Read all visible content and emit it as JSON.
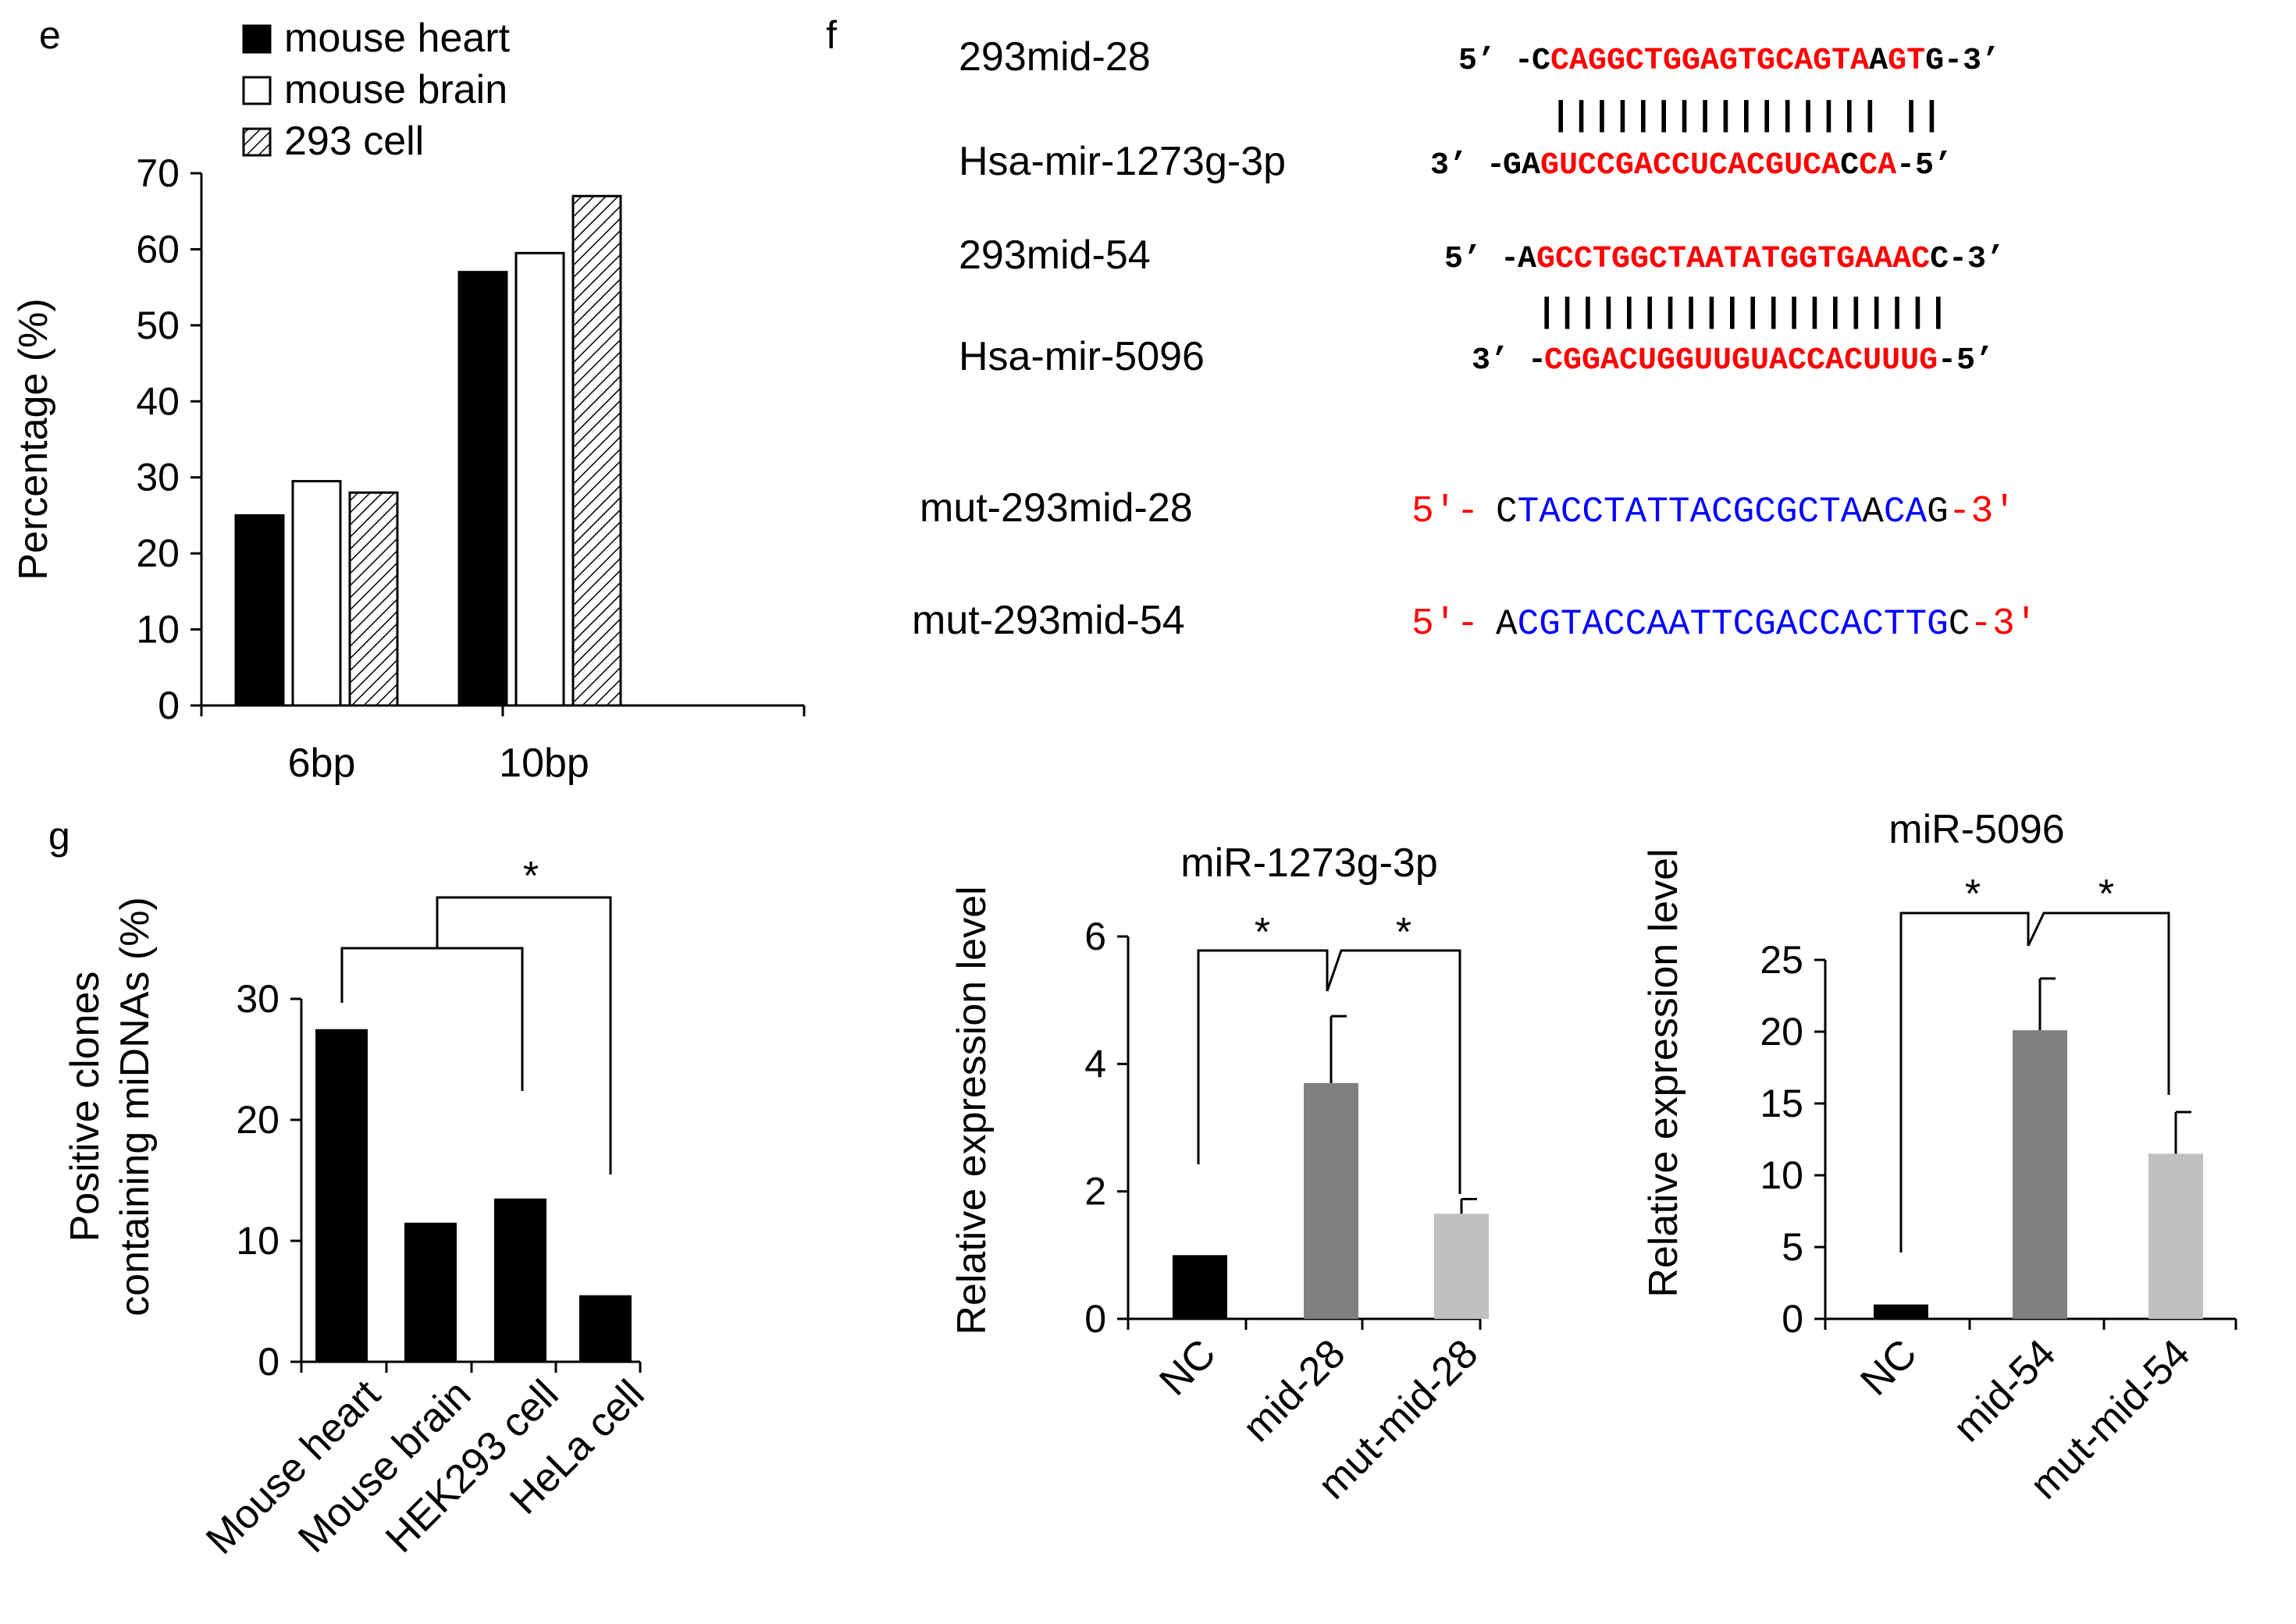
{
  "panel_labels": {
    "e": "e",
    "f": "f",
    "g": "g"
  },
  "colors": {
    "black": "#000000",
    "seq_red": "#ff0000",
    "seq_blue": "#0000ff",
    "bar_dark_gray": "#808080",
    "bar_light_gray": "#c0c0c0"
  },
  "chart_data": [
    {
      "id": "e",
      "type": "bar",
      "title": "",
      "xlabel": "",
      "ylabel": "Percentage (%)",
      "ylim": [
        0,
        70
      ],
      "yticks": [
        "0",
        "10",
        "20",
        "30",
        "40",
        "50",
        "60",
        "70"
      ],
      "categories": [
        "6bp",
        "10bp"
      ],
      "series": [
        {
          "name": "mouse heart",
          "values": [
            25,
            57
          ],
          "fill": "black"
        },
        {
          "name": "mouse brain",
          "values": [
            29.5,
            59.5
          ],
          "fill": "white"
        },
        {
          "name": "293 cell",
          "values": [
            28,
            67
          ],
          "fill": "hatch"
        }
      ],
      "legend": "top-left"
    },
    {
      "id": "g",
      "type": "bar",
      "title": "",
      "xlabel": "",
      "ylabel_lines": [
        "Positive clones",
        "containing miDNAs (%)"
      ],
      "ylim": [
        0,
        30
      ],
      "yticks": [
        "0",
        "10",
        "20",
        "30"
      ],
      "categories": [
        "Mouse heart",
        "Mouse brain",
        "HEK293 cell",
        "HeLa cell"
      ],
      "values": [
        27.5,
        11.5,
        13.5,
        5.5
      ],
      "annotations": [
        "*"
      ]
    },
    {
      "id": "f1",
      "type": "bar",
      "title": "miR-1273g-3p",
      "xlabel": "",
      "ylabel": "Relative expression level",
      "ylim": [
        0,
        6
      ],
      "yticks": [
        "0",
        "2",
        "4",
        "6"
      ],
      "categories": [
        "NC",
        "mid-28",
        "mut-mid-28"
      ],
      "values": [
        1.0,
        3.7,
        1.65
      ],
      "errors": [
        0,
        1.05,
        0.23
      ],
      "annotations": [
        "*",
        "*"
      ]
    },
    {
      "id": "f2",
      "type": "bar",
      "title": "miR-5096",
      "xlabel": "",
      "ylabel": "Relative expression level",
      "ylim": [
        0,
        25
      ],
      "yticks": [
        "0",
        "5",
        "10",
        "15",
        "20",
        "25"
      ],
      "categories": [
        "NC",
        "mid-54",
        "mut-mid-54"
      ],
      "values": [
        1.0,
        20.1,
        11.5
      ],
      "errors": [
        0,
        3.6,
        2.9
      ],
      "annotations": [
        "*",
        "*"
      ]
    }
  ],
  "sequences": {
    "pairs": [
      {
        "top_label": "293mid-28",
        "top_5prime": "5’ -",
        "top_seq": [
          [
            "C",
            "black"
          ],
          [
            "CAGGCTGGAGTGCAGTA",
            "red"
          ],
          [
            "A",
            "black"
          ],
          [
            "GT",
            "red"
          ],
          [
            "G",
            "black"
          ]
        ],
        "top_3prime": "-3’",
        "bonds": "|||||||||||||||| ||",
        "bottom_label": "Hsa-mir-1273g-3p",
        "bottom_3prime": "3’ -",
        "bottom_seq": [
          [
            "GA",
            "black"
          ],
          [
            "GUCCGACCUCACGUCA",
            "red"
          ],
          [
            "C",
            "black"
          ],
          [
            "CA",
            "red"
          ]
        ],
        "bottom_5prime": "-5’"
      },
      {
        "top_label": "293mid-54",
        "top_5prime": "5’ -",
        "top_seq": [
          [
            "A",
            "black"
          ],
          [
            "GCCTGGCTAATATGGTGAAAC",
            "red"
          ],
          [
            "C",
            "black"
          ]
        ],
        "top_3prime": "-3’",
        "bonds": "||||||||||||||||||||",
        "bottom_label": "Hsa-mir-5096",
        "bottom_3prime": "3’ -",
        "bottom_seq": [
          [
            "CGGACUGGUUGUACCACUUUG",
            "red"
          ]
        ],
        "bottom_5prime": "-5’"
      }
    ],
    "mutants": [
      {
        "label": "mut-293mid-28",
        "prefix": "5′-",
        "seq": [
          [
            "C",
            "black"
          ],
          [
            "TACCTATTACGCGCTA",
            "blue"
          ],
          [
            "A",
            "black"
          ],
          [
            "CA",
            "blue"
          ],
          [
            "G",
            "black"
          ]
        ],
        "suffix": "-3′"
      },
      {
        "label": "mut-293mid-54",
        "prefix": "5′-",
        "seq": [
          [
            "A",
            "black"
          ],
          [
            "CGTACCAATTCGACCACTTG",
            "blue"
          ],
          [
            "C",
            "black"
          ]
        ],
        "suffix": "-3′"
      }
    ]
  }
}
